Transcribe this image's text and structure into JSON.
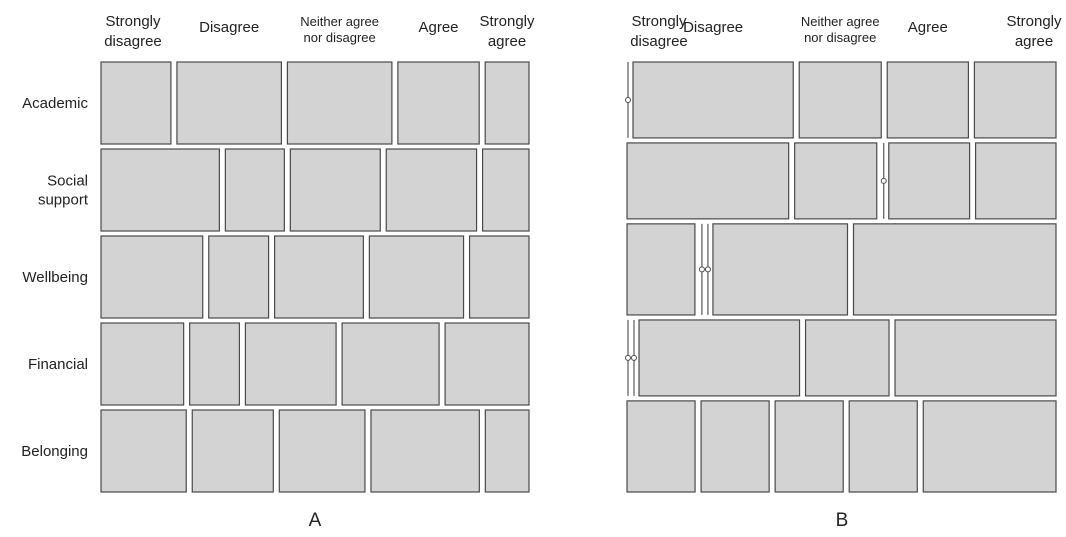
{
  "chart_data": [
    {
      "type": "mosaic",
      "panel_label": "A",
      "categories": [
        "Strongly disagree",
        "Disagree",
        "Neither agree nor disagree",
        "Agree",
        "Strongly agree"
      ],
      "category_label_lines": [
        [
          "Strongly",
          "disagree"
        ],
        [
          "Disagree"
        ],
        [
          "Neither agree",
          "nor disagree"
        ],
        [
          "Agree"
        ],
        [
          "Strongly",
          "agree"
        ]
      ],
      "rows": [
        {
          "name": "Academic",
          "name_lines": [
            "Academic"
          ],
          "values": [
            0.166,
            0.248,
            0.248,
            0.193,
            0.104
          ]
        },
        {
          "name": "Social support",
          "name_lines": [
            "Social",
            "support"
          ],
          "values": [
            0.283,
            0.141,
            0.215,
            0.216,
            0.111
          ]
        },
        {
          "name": "Wellbeing",
          "name_lines": [
            "Wellbeing"
          ],
          "values": [
            0.243,
            0.143,
            0.212,
            0.225,
            0.142
          ]
        },
        {
          "name": "Financial",
          "name_lines": [
            "Financial"
          ],
          "values": [
            0.196,
            0.118,
            0.215,
            0.23,
            0.199
          ]
        },
        {
          "name": "Belonging",
          "name_lines": [
            "Belonging"
          ],
          "values": [
            0.203,
            0.193,
            0.204,
            0.258,
            0.104
          ]
        }
      ],
      "row_heights": [
        0.197,
        0.197,
        0.197,
        0.197,
        0.197
      ]
    },
    {
      "type": "mosaic",
      "panel_label": "B",
      "categories": [
        "Strongly disagree",
        "Disagree",
        "Neither agree nor disagree",
        "Agree",
        "Strongly agree"
      ],
      "category_label_lines": [
        [
          "Strongly",
          "disagree"
        ],
        [
          "Disagree"
        ],
        [
          "Neither agree",
          "nor disagree"
        ],
        [
          "Agree"
        ],
        [
          "Strongly",
          "agree"
        ]
      ],
      "rows": [
        {
          "name": "Academic",
          "values": [
            0.0,
            0.379,
            0.194,
            0.192,
            0.193
          ]
        },
        {
          "name": "Social support",
          "values": [
            0.382,
            0.194,
            0.0,
            0.191,
            0.19
          ]
        },
        {
          "name": "Wellbeing",
          "values": [
            0.158,
            0.0,
            0.0,
            0.313,
            0.471
          ]
        },
        {
          "name": "Financial",
          "values": [
            0.0,
            0.0,
            0.375,
            0.195,
            0.376
          ]
        },
        {
          "name": "Belonging",
          "values": [
            0.16,
            0.16,
            0.16,
            0.16,
            0.312
          ]
        }
      ],
      "row_heights": [
        0.18,
        0.18,
        0.216,
        0.18,
        0.216
      ]
    }
  ],
  "colors": {
    "tile_fill": "#d3d3d3",
    "tile_border": "#4a4a4a"
  }
}
